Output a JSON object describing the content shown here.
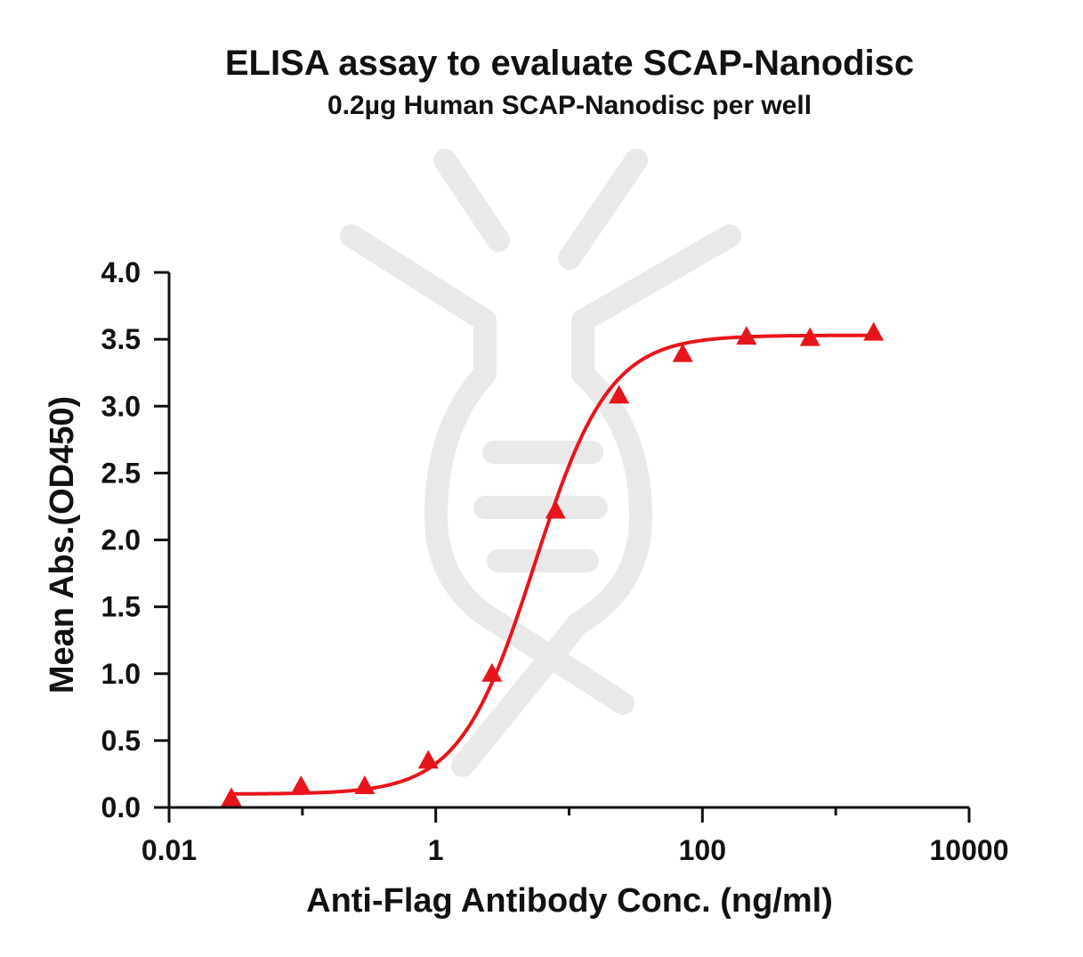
{
  "chart_data": {
    "type": "scatter",
    "title": "ELISA assay to evaluate SCAP-Nanodisc",
    "subtitle": "0.2µg Human SCAP-Nanodisc per well",
    "xlabel": "Anti-Flag Antibody Conc. (ng/ml)",
    "ylabel": "Mean Abs.(OD450)",
    "x_scale": "log",
    "xlim": [
      0.01,
      10000
    ],
    "ylim": [
      0,
      4.0
    ],
    "x_ticks": [
      0.01,
      1,
      100,
      10000
    ],
    "x_tick_labels": [
      "0.01",
      "1",
      "100",
      "10000"
    ],
    "y_ticks": [
      0,
      0.5,
      1.0,
      1.5,
      2.0,
      2.5,
      3.0,
      3.5,
      4.0
    ],
    "y_tick_labels": [
      "0.0",
      "0.5",
      "1.0",
      "1.5",
      "2.0",
      "2.5",
      "3.0",
      "3.5",
      "4.0"
    ],
    "grid": false,
    "series": [
      {
        "marker": "triangle",
        "color": "#e8141b",
        "x": [
          0.0293,
          0.0977,
          0.293,
          0.879,
          2.64,
          7.91,
          23.7,
          71.2,
          214,
          641,
          1923
        ],
        "y": [
          0.07,
          0.16,
          0.16,
          0.35,
          1.0,
          2.22,
          3.08,
          3.39,
          3.52,
          3.51,
          3.55
        ]
      }
    ],
    "fit_curve": {
      "type": "4PL",
      "color": "#e8141b",
      "bottom": 0.1,
      "top": 3.53,
      "ec50": 5.5,
      "hill": 1.55
    }
  }
}
